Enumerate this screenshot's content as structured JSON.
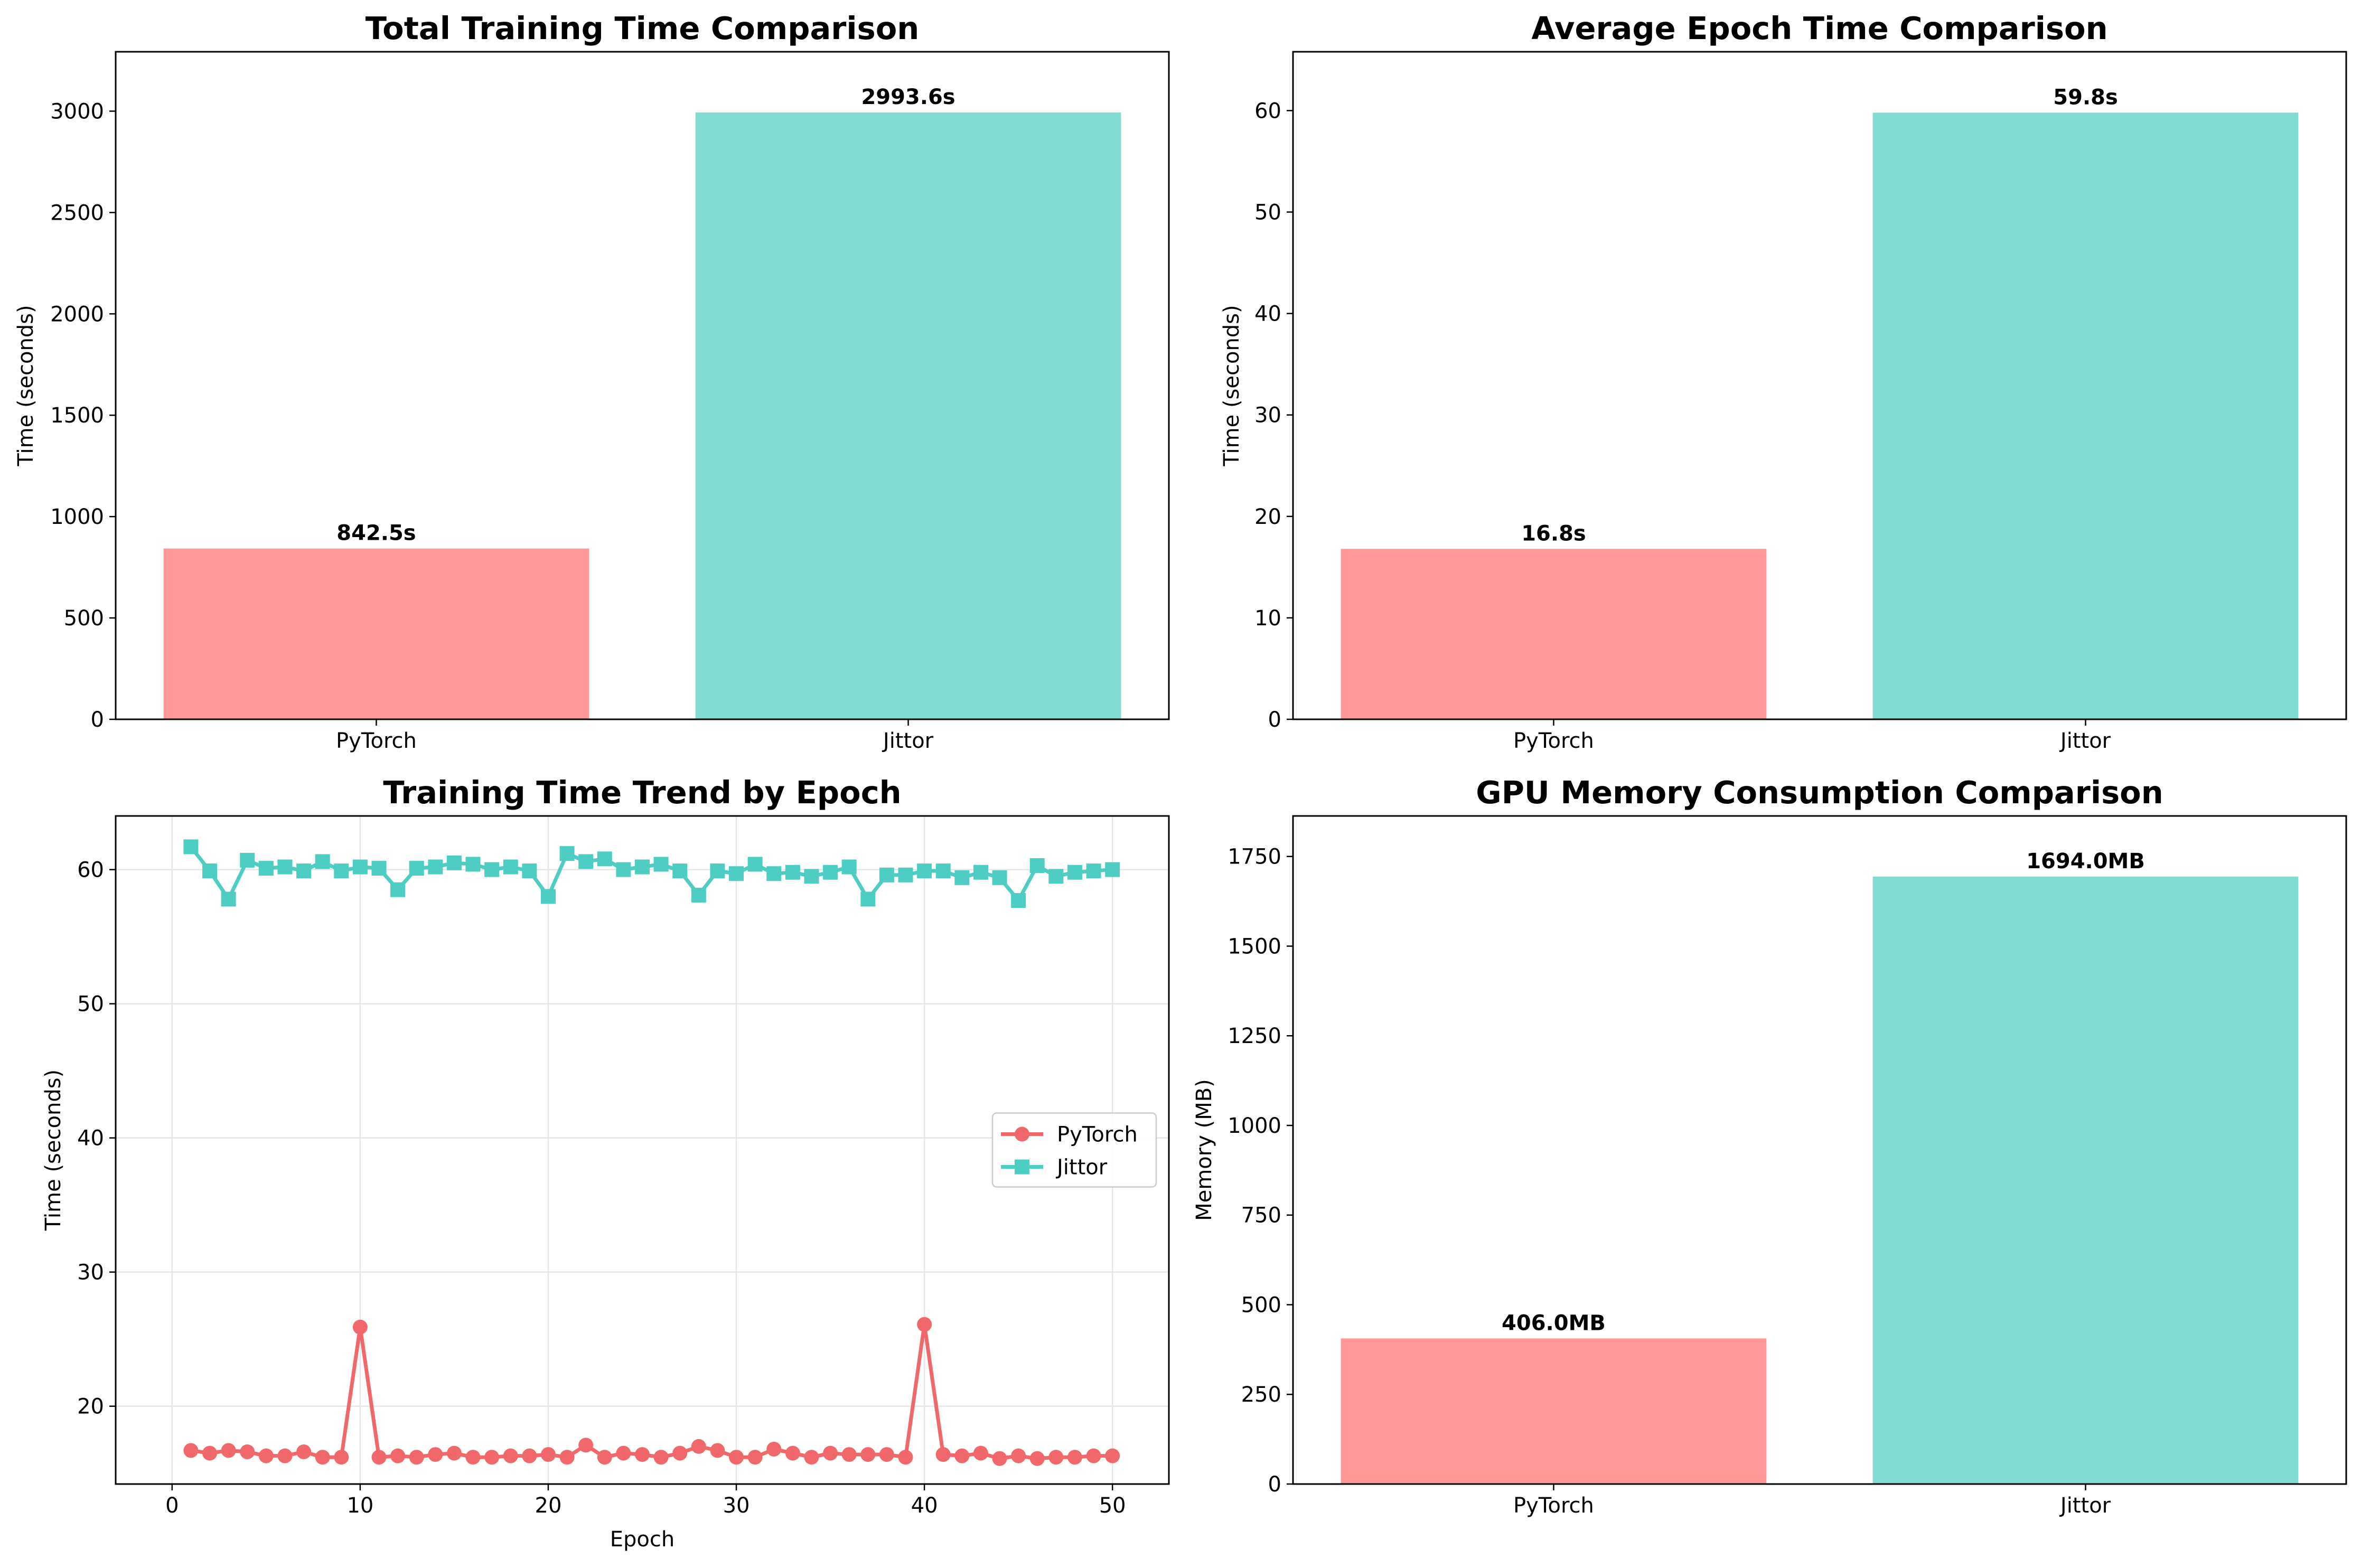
{
  "colors": {
    "pytorch_bar": "#ff9896",
    "jittor_bar": "#83dcd4",
    "pytorch_line": "#f0686a",
    "jittor_line": "#4ecdc4",
    "grid": "#e6e6e6"
  },
  "chart_data": [
    {
      "id": "total",
      "type": "bar",
      "title": "Total Training Time Comparison",
      "xlabel": "",
      "ylabel": "Time (seconds)",
      "categories": [
        "PyTorch",
        "Jittor"
      ],
      "values": [
        842.5,
        2993.6
      ],
      "value_labels": [
        "842.5s",
        "2993.6s"
      ],
      "ylim": [
        0,
        3293
      ],
      "yticks": [
        0,
        500,
        1000,
        1500,
        2000,
        2500,
        3000
      ],
      "ytick_labels": [
        "0",
        "500",
        "1000",
        "1500",
        "2000",
        "2500",
        "3000"
      ],
      "grid": false
    },
    {
      "id": "avg",
      "type": "bar",
      "title": "Average Epoch Time Comparison",
      "xlabel": "",
      "ylabel": "Time (seconds)",
      "categories": [
        "PyTorch",
        "Jittor"
      ],
      "values": [
        16.8,
        59.8
      ],
      "value_labels": [
        "16.8s",
        "59.8s"
      ],
      "ylim": [
        0,
        65.8
      ],
      "yticks": [
        0,
        10,
        20,
        30,
        40,
        50,
        60
      ],
      "ytick_labels": [
        "0",
        "10",
        "20",
        "30",
        "40",
        "50",
        "60"
      ],
      "grid": false
    },
    {
      "id": "trend",
      "type": "line",
      "title": "Training Time Trend by Epoch",
      "xlabel": "Epoch",
      "ylabel": "Time (seconds)",
      "xlim": [
        -3,
        53
      ],
      "ylim": [
        14.2,
        64
      ],
      "xticks": [
        0,
        10,
        20,
        30,
        40,
        50
      ],
      "xtick_labels": [
        "0",
        "10",
        "20",
        "30",
        "40",
        "50"
      ],
      "yticks": [
        20,
        30,
        40,
        50,
        60
      ],
      "ytick_labels": [
        "20",
        "30",
        "40",
        "50",
        "60"
      ],
      "grid": true,
      "legend": "center-right",
      "x": [
        1,
        2,
        3,
        4,
        5,
        6,
        7,
        8,
        9,
        10,
        11,
        12,
        13,
        14,
        15,
        16,
        17,
        18,
        19,
        20,
        21,
        22,
        23,
        24,
        25,
        26,
        27,
        28,
        29,
        30,
        31,
        32,
        33,
        34,
        35,
        36,
        37,
        38,
        39,
        40,
        41,
        42,
        43,
        44,
        45,
        46,
        47,
        48,
        49,
        50
      ],
      "series": [
        {
          "name": "PyTorch",
          "marker": "circle",
          "values": [
            16.7,
            16.5,
            16.7,
            16.6,
            16.3,
            16.3,
            16.6,
            16.2,
            16.2,
            25.9,
            16.2,
            16.3,
            16.2,
            16.4,
            16.5,
            16.2,
            16.2,
            16.3,
            16.3,
            16.4,
            16.2,
            17.1,
            16.2,
            16.5,
            16.4,
            16.2,
            16.5,
            17.0,
            16.7,
            16.2,
            16.2,
            16.8,
            16.5,
            16.2,
            16.5,
            16.4,
            16.4,
            16.4,
            16.2,
            26.1,
            16.4,
            16.3,
            16.5,
            16.1,
            16.3,
            16.1,
            16.2,
            16.2,
            16.3,
            16.3
          ]
        },
        {
          "name": "Jittor",
          "marker": "square",
          "values": [
            61.7,
            59.9,
            57.8,
            60.7,
            60.1,
            60.2,
            59.9,
            60.6,
            59.9,
            60.2,
            60.1,
            58.5,
            60.1,
            60.2,
            60.5,
            60.4,
            60.0,
            60.2,
            59.9,
            58.0,
            61.2,
            60.6,
            60.8,
            60.0,
            60.2,
            60.4,
            59.9,
            58.1,
            59.9,
            59.7,
            60.4,
            59.7,
            59.8,
            59.5,
            59.8,
            60.2,
            57.8,
            59.6,
            59.6,
            59.9,
            59.9,
            59.4,
            59.8,
            59.4,
            57.7,
            60.3,
            59.5,
            59.8,
            59.9,
            60.0
          ]
        }
      ]
    },
    {
      "id": "memory",
      "type": "bar",
      "title": "GPU Memory Consumption Comparison",
      "xlabel": "",
      "ylabel": "Memory (MB)",
      "categories": [
        "PyTorch",
        "Jittor"
      ],
      "values": [
        406.0,
        1694.0
      ],
      "value_labels": [
        "406.0MB",
        "1694.0MB"
      ],
      "ylim": [
        0,
        1863
      ],
      "yticks": [
        0,
        250,
        500,
        750,
        1000,
        1250,
        1500,
        1750
      ],
      "ytick_labels": [
        "0",
        "250",
        "500",
        "750",
        "1000",
        "1250",
        "1500",
        "1750"
      ],
      "grid": false
    }
  ]
}
